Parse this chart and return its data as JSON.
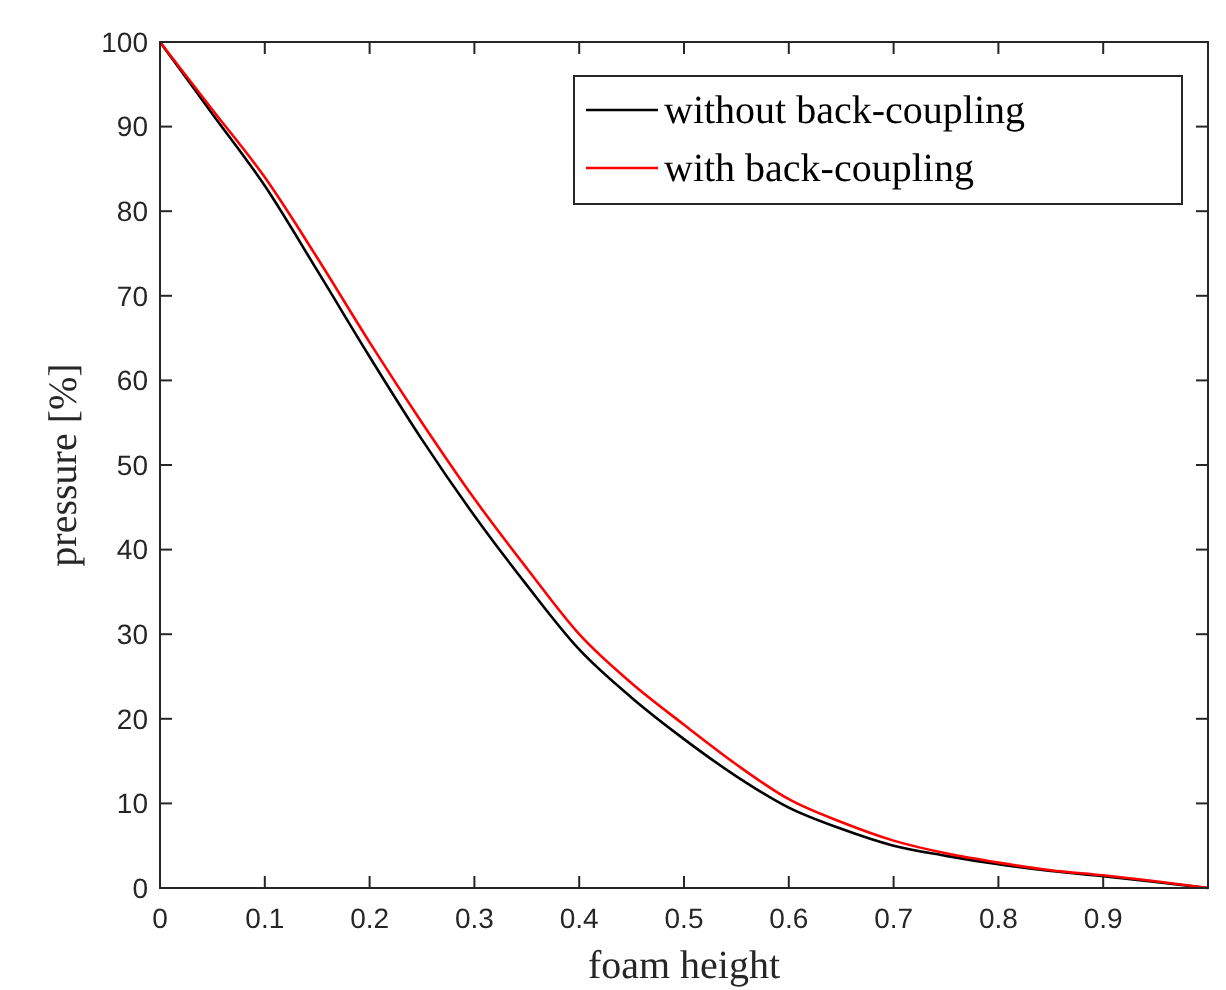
{
  "chart_data": {
    "type": "line",
    "xlabel": "foam height",
    "ylabel": "pressure [%]",
    "x": [
      0,
      0.05,
      0.1,
      0.15,
      0.2,
      0.25,
      0.3,
      0.35,
      0.4,
      0.45,
      0.5,
      0.55,
      0.6,
      0.65,
      0.7,
      0.75,
      0.8,
      0.85,
      0.9,
      0.95,
      1
    ],
    "series": [
      {
        "name": "without back-coupling",
        "color": "#000000",
        "values": [
          100,
          91.5,
          83,
          73,
          62.8,
          53,
          44,
          35.8,
          28.2,
          22.5,
          17.6,
          13.2,
          9.5,
          7,
          5,
          3.8,
          2.8,
          2,
          1.4,
          0.7,
          0
        ]
      },
      {
        "name": "with back-coupling",
        "color": "#ff0000",
        "values": [
          100,
          92,
          84,
          74.5,
          64.5,
          55,
          46,
          37.8,
          30,
          24.2,
          19.3,
          14.6,
          10.5,
          7.8,
          5.6,
          4.1,
          3,
          2.1,
          1.5,
          0.8,
          0
        ]
      }
    ],
    "xlim": [
      0,
      1
    ],
    "xticks": [
      0,
      0.1,
      0.2,
      0.3,
      0.4,
      0.5,
      0.6,
      0.7,
      0.8,
      0.9
    ],
    "ylim": [
      0,
      100
    ],
    "yticks": [
      0,
      10,
      20,
      30,
      40,
      50,
      60,
      70,
      80,
      90,
      100
    ],
    "grid": false,
    "legend": "top right",
    "line_style": "solid",
    "marker": "none"
  }
}
